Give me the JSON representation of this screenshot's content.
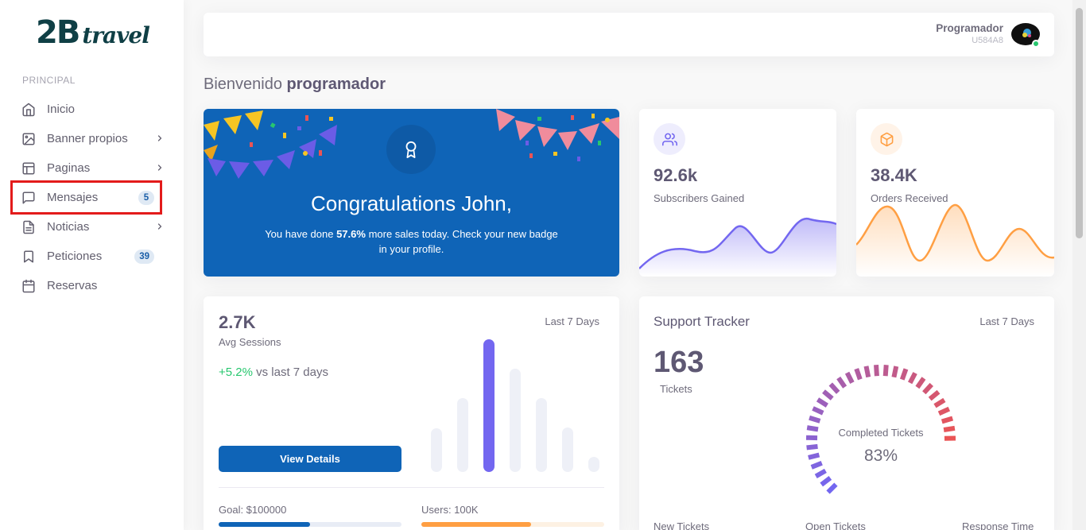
{
  "logo": {
    "part1": "2B",
    "part2": "travel"
  },
  "sidebar": {
    "section": "PRINCIPAL",
    "items": [
      {
        "label": "Inicio",
        "icon": "home-icon"
      },
      {
        "label": "Banner propios",
        "icon": "image-icon",
        "has_submenu": true
      },
      {
        "label": "Paginas",
        "icon": "layout-icon",
        "has_submenu": true
      },
      {
        "label": "Mensajes",
        "icon": "message-square-icon",
        "badge": "5"
      },
      {
        "label": "Noticias",
        "icon": "file-text-icon",
        "has_submenu": true
      },
      {
        "label": "Peticiones",
        "icon": "bookmark-icon",
        "badge": "39"
      },
      {
        "label": "Reservas",
        "icon": "calendar-icon"
      }
    ]
  },
  "user": {
    "name": "Programador",
    "code": "U584A8",
    "status_color": "#28c76f"
  },
  "welcome": {
    "prefix": "Bienvenido",
    "name": "programador"
  },
  "congrats": {
    "title": "Congratulations John,",
    "text_before": "You have done ",
    "highlight": "57.6%",
    "text_after": " more sales today. Check your new badge in your profile."
  },
  "stats": [
    {
      "value": "92.6k",
      "caption": "Subscribers Gained",
      "icon": "users-icon",
      "color": "#7367f0"
    },
    {
      "value": "38.4K",
      "caption": "Orders Received",
      "icon": "package-icon",
      "color": "#ff9f43"
    }
  ],
  "sessions": {
    "value": "2.7K",
    "label": "Avg Sessions",
    "period": "Last 7 Days",
    "delta_pct": "+5.2%",
    "delta_text": " vs last 7 days",
    "button": "View Details",
    "goal_label": "Goal: $100000",
    "goal_progress": 0.5,
    "users_label": "Users: 100K",
    "users_progress": 0.6
  },
  "support": {
    "title": "Support Tracker",
    "period": "Last 7 Days",
    "tickets": "163",
    "tickets_label": "Tickets",
    "gauge_label": "Completed Tickets",
    "gauge_value": "83%",
    "gauge_percent": 83,
    "footer": [
      "New Tickets",
      "Open Tickets",
      "Response Time"
    ]
  },
  "colors": {
    "primary": "#0f64b7",
    "purple": "#7367f0",
    "orange": "#ff9f43",
    "success": "#28c76f",
    "danger": "#ea5455"
  }
}
